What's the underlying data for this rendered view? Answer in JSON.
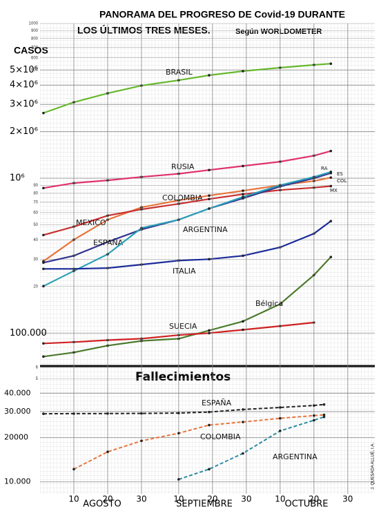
{
  "title": "PANORAMA DEL PROGRESO DE Covid-19 DURANTE",
  "subtitle": "LOS ÚLTIMOS TRES MESES.",
  "source": "Según WORLDOMETER",
  "signature": "J. QUESADA ALLUÉ, I.A.",
  "chart_data": [
    {
      "type": "line",
      "title": "CASOS",
      "log_scale": true,
      "x": [
        1,
        10,
        20,
        30,
        41,
        50,
        60,
        71,
        81,
        86
      ],
      "xlim": [
        0,
        99
      ],
      "ylim": [
        60000,
        10000000
      ],
      "yticks": [
        {
          "value": 100000,
          "label": "100.000"
        },
        {
          "value": 1000000,
          "label": "10⁶"
        },
        {
          "value": 2000000,
          "label": "2×10⁶"
        },
        {
          "value": 3000000,
          "label": "3×10⁶"
        },
        {
          "value": 4000000,
          "label": "4×10⁶"
        },
        {
          "value": 5000000,
          "label": "5×10⁶"
        }
      ],
      "minor_yticks": [
        {
          "value": 60000,
          "label": "6"
        },
        {
          "value": 200000,
          "label": "20"
        },
        {
          "value": 300000,
          "label": "30"
        },
        {
          "value": 400000,
          "label": "40"
        },
        {
          "value": 500000,
          "label": "50"
        },
        {
          "value": 600000,
          "label": "60"
        },
        {
          "value": 700000,
          "label": "70"
        },
        {
          "value": 800000,
          "label": "80"
        },
        {
          "value": 900000,
          "label": "90"
        },
        {
          "value": 5000000,
          "label": "500"
        },
        {
          "value": 6000000,
          "label": "600"
        },
        {
          "value": 7000000,
          "label": "700"
        },
        {
          "value": 8000000,
          "label": "800"
        },
        {
          "value": 9000000,
          "label": "900"
        },
        {
          "value": 10000000,
          "label": "1000"
        }
      ],
      "series": [
        {
          "name": "BRASIL",
          "color": "#66b82c",
          "values": [
            2640000,
            3100000,
            3540000,
            3970000,
            4300000,
            4630000,
            4920000,
            5180000,
            5400000,
            5500000
          ]
        },
        {
          "name": "RUSIA",
          "color": "#e0306e",
          "values": [
            865000,
            931000,
            970000,
            1020000,
            1070000,
            1130000,
            1200000,
            1280000,
            1400000,
            1500000
          ]
        },
        {
          "name": "COLOMBIA",
          "color": "#e8743a",
          "values": [
            291000,
            401000,
            540000,
            649000,
            720000,
            773000,
            831000,
            902000,
            960000,
            1010000
          ],
          "end_label": "COL"
        },
        {
          "name": "MEXICO",
          "color": "#c83030",
          "values": [
            430000,
            487000,
            574000,
            630000,
            684000,
            734000,
            789000,
            839000,
            870000,
            890000
          ],
          "end_label": "MX"
        },
        {
          "name": "ESPAÑA",
          "color": "#34348f",
          "values": [
            285000,
            316000,
            388000,
            467000,
            540000,
            637000,
            742000,
            884000,
            1000000,
            1080000
          ],
          "end_label": "ES"
        },
        {
          "name": "ARGENTINA",
          "color": "#2aa0b8",
          "values": [
            201000,
            252000,
            323000,
            477000,
            540000,
            637000,
            757000,
            902000,
            1020000,
            1100000
          ],
          "end_label": "RA"
        },
        {
          "name": "ITALIA",
          "color": "#1a2a9a",
          "values": [
            260000,
            260000,
            263000,
            277000,
            294000,
            300000,
            316000,
            358000,
            439000,
            529000
          ]
        },
        {
          "name": "Bélgica",
          "color": "#4a7a2a",
          "values": [
            70500,
            75000,
            83000,
            89000,
            92000,
            104000,
            119000,
            154000,
            237000,
            310000
          ]
        },
        {
          "name": "SUECIA",
          "color": "#d02020",
          "values": [
            85700,
            87500,
            90000,
            92000,
            97000,
            100000,
            105000,
            111000,
            117000,
            null
          ]
        }
      ]
    },
    {
      "type": "line",
      "title": "Fallecimientos",
      "log_scale": true,
      "x": [
        1,
        10,
        20,
        30,
        41,
        50,
        60,
        71,
        81,
        84
      ],
      "xlim": [
        0,
        99
      ],
      "xticks": [
        {
          "value": 10,
          "label": "10"
        },
        {
          "value": 20,
          "label": "20"
        },
        {
          "value": 30,
          "label": "30"
        },
        {
          "value": 41,
          "label": "10"
        },
        {
          "value": 51,
          "label": "20"
        },
        {
          "value": 61,
          "label": "30"
        },
        {
          "value": 71,
          "label": "10"
        },
        {
          "value": 81,
          "label": "20"
        },
        {
          "value": 91,
          "label": "30"
        }
      ],
      "month_labels": [
        "AGOSTO",
        "SEPTIEMBRE",
        "OCTUBRE"
      ],
      "ylim": [
        8300,
        52000
      ],
      "yticks": [
        {
          "value": 10000,
          "label": "10.000"
        },
        {
          "value": 20000,
          "label": "20000"
        },
        {
          "value": 30000,
          "label": "30.000"
        },
        {
          "value": 40000,
          "label": "40.000"
        }
      ],
      "minor_yticks": [
        {
          "value": 50000,
          "label": "5"
        }
      ],
      "series": [
        {
          "name": "ESPAÑA",
          "color": "#222222",
          "values": [
            29000,
            29050,
            29100,
            29150,
            29300,
            29800,
            31000,
            32000,
            33000,
            33500
          ]
        },
        {
          "name": "COLOMBIA",
          "color": "#e8743a",
          "values": [
            null,
            12200,
            16000,
            19000,
            21400,
            24300,
            25500,
            27000,
            28200,
            28500
          ]
        },
        {
          "name": "ARGENTINA",
          "color": "#2a8aa0",
          "values": [
            null,
            null,
            null,
            null,
            10400,
            12200,
            15600,
            22200,
            26200,
            27600
          ]
        }
      ]
    }
  ]
}
